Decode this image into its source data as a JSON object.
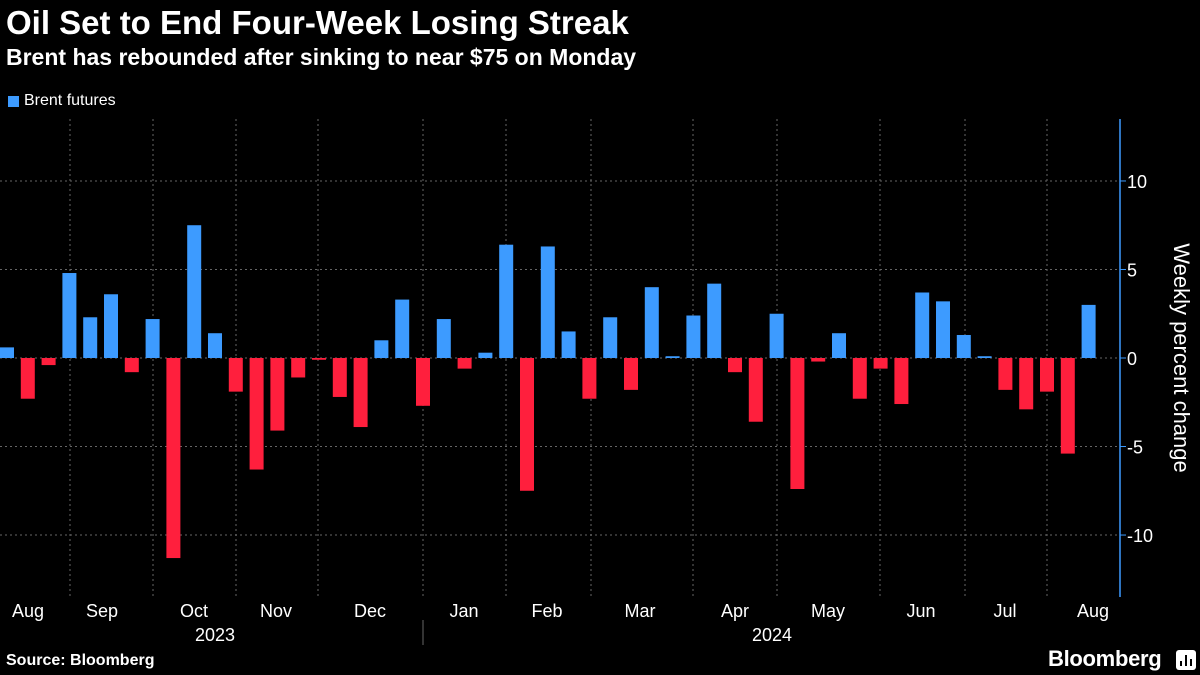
{
  "title": "Oil Set to End Four-Week Losing Streak",
  "subtitle": "Brent has rebounded after sinking to near $75 on Monday",
  "legend": {
    "label": "Brent futures",
    "color": "#3d9bff"
  },
  "source": "Source: Bloomberg",
  "brand": "Bloomberg",
  "colors": {
    "positive": "#3d9bff",
    "negative": "#ff1f3d",
    "axis": "#3d9bff",
    "grid": "#666666"
  },
  "chart_data": {
    "type": "bar",
    "title": "Oil Set to End Four-Week Losing Streak",
    "ylabel": "Weekly percent change",
    "xlabel": "",
    "ylim": [
      -13.5,
      13.5
    ],
    "yticks": [
      10,
      5,
      0,
      -5,
      -10
    ],
    "grid": true,
    "legend_position": "top-left",
    "month_labels": [
      "Aug",
      "Sep",
      "Oct",
      "Nov",
      "Dec",
      "Jan",
      "Feb",
      "Mar",
      "Apr",
      "May",
      "Jun",
      "Jul",
      "Aug"
    ],
    "years": [
      "2023",
      "2024"
    ],
    "series": [
      {
        "name": "Brent futures",
        "values": [
          0.6,
          -2.3,
          -0.4,
          4.8,
          2.3,
          3.6,
          -0.8,
          2.2,
          -11.3,
          7.5,
          1.4,
          -1.9,
          -6.3,
          -4.1,
          -1.1,
          -0.1,
          -2.2,
          -3.9,
          1.0,
          3.3,
          -2.7,
          2.2,
          -0.6,
          0.3,
          6.4,
          -7.5,
          6.3,
          1.5,
          -2.3,
          2.3,
          -1.8,
          4.0,
          0.1,
          2.4,
          4.2,
          -0.8,
          -3.6,
          2.5,
          -7.4,
          -0.2,
          1.4,
          -2.3,
          -0.6,
          -2.6,
          3.7,
          3.2,
          1.3,
          0.1,
          -1.8,
          -2.9,
          -1.9,
          -5.4,
          3.0
        ]
      }
    ]
  }
}
